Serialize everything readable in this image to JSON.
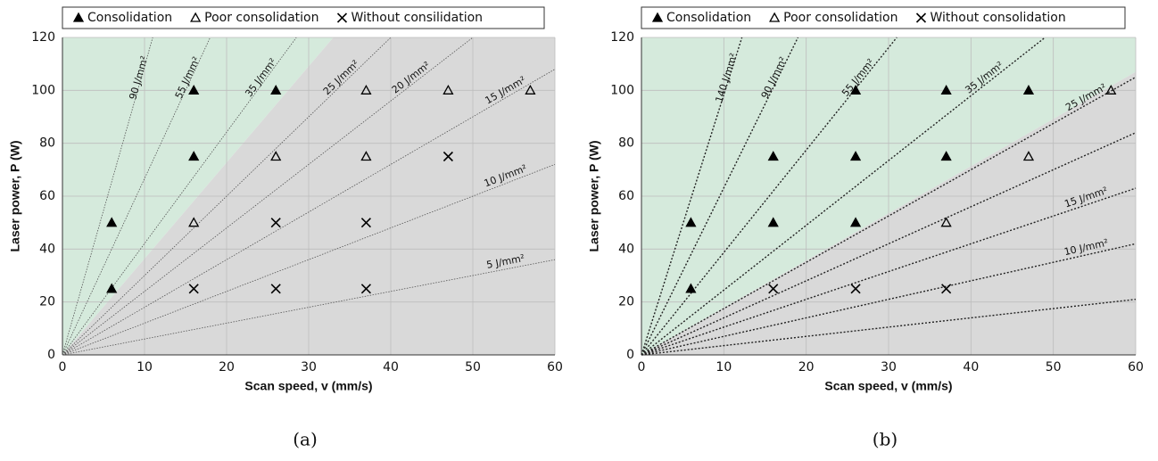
{
  "chart_data": [
    {
      "type": "scatter",
      "caption": "(a)",
      "x_label": "Scan speed, v (mm/s)",
      "y_label": "Laser power, P (W)",
      "xlim": [
        0,
        60
      ],
      "ylim": [
        0,
        120
      ],
      "xticks": [
        0,
        10,
        20,
        30,
        40,
        50,
        60
      ],
      "yticks": [
        0,
        20,
        40,
        60,
        80,
        100,
        120
      ],
      "grid": true,
      "regions": [
        {
          "color": "#d5eadc",
          "points": [
            [
              0,
              0
            ],
            [
              0,
              120
            ],
            [
              33,
              120
            ]
          ]
        },
        {
          "color": "#d9d9d9",
          "points": [
            [
              0,
              0
            ],
            [
              33,
              120
            ],
            [
              60,
              120
            ],
            [
              60,
              0
            ]
          ]
        }
      ],
      "lines": [
        {
          "label": "90 J/mm²",
          "end": [
            11,
            120
          ]
        },
        {
          "label": "55 J/mm²",
          "end": [
            18,
            120
          ]
        },
        {
          "label": "35 J/mm²",
          "end": [
            28.5,
            120
          ]
        },
        {
          "label": "25 J/mm²",
          "end": [
            40,
            120
          ]
        },
        {
          "label": "20 J/mm²",
          "end": [
            50,
            120
          ]
        },
        {
          "label": "15 J/mm²",
          "end": [
            60,
            108
          ]
        },
        {
          "label": "10 J/mm²",
          "end": [
            60,
            72
          ]
        },
        {
          "label": "5 J/mm²",
          "end": [
            60,
            36
          ]
        }
      ],
      "series": [
        {
          "name": "Consolidation",
          "marker": "triangle-filled",
          "color": "#000000",
          "x": [
            6,
            6,
            16,
            16,
            26
          ],
          "values": [
            50,
            25,
            100,
            75,
            100
          ]
        },
        {
          "name": "Poor consolidation",
          "marker": "triangle-open",
          "color": "#000000",
          "x": [
            16,
            26,
            37,
            37,
            47,
            57
          ],
          "values": [
            50,
            75,
            100,
            75,
            100,
            100
          ]
        },
        {
          "name": "Without consilidation",
          "marker": "cross",
          "color": "#000000",
          "x": [
            16,
            26,
            26,
            37,
            37,
            47
          ],
          "values": [
            25,
            50,
            25,
            50,
            25,
            75
          ]
        }
      ]
    },
    {
      "type": "scatter",
      "caption": "(b)",
      "x_label": "Scan speed, v (mm/s)",
      "y_label": "Laser power, P (W)",
      "xlim": [
        0,
        60
      ],
      "ylim": [
        0,
        120
      ],
      "xticks": [
        0,
        10,
        20,
        30,
        40,
        50,
        60
      ],
      "yticks": [
        0,
        20,
        40,
        60,
        80,
        100,
        120
      ],
      "grid": true,
      "regions": [
        {
          "color": "#d5eadc",
          "points": [
            [
              0,
              0
            ],
            [
              0,
              120
            ],
            [
              60,
              120
            ],
            [
              60,
              107
            ]
          ]
        },
        {
          "color": "#d9d9d9",
          "points": [
            [
              0,
              0
            ],
            [
              60,
              107
            ],
            [
              60,
              0
            ]
          ]
        }
      ],
      "lines": [
        {
          "label": "140 J/mm²",
          "end": [
            12.2,
            120
          ]
        },
        {
          "label": "90 J/mm²",
          "end": [
            19,
            120
          ]
        },
        {
          "label": "55 J/mm²",
          "end": [
            31,
            120
          ]
        },
        {
          "label": "35 J/mm²",
          "end": [
            49,
            120
          ]
        },
        {
          "label": "25 J/mm²",
          "end": [
            60,
            105
          ]
        },
        {
          "label": null,
          "end": [
            60,
            84
          ]
        },
        {
          "label": "15 J/mm²",
          "end": [
            60,
            63
          ]
        },
        {
          "label": "10 J/mm²",
          "end": [
            60,
            42
          ]
        },
        {
          "label": null,
          "end": [
            60,
            21
          ]
        }
      ],
      "series": [
        {
          "name": "Consolidation",
          "marker": "triangle-filled",
          "color": "#000000",
          "x": [
            6,
            6,
            16,
            16,
            26,
            26,
            26,
            37,
            37,
            47
          ],
          "values": [
            50,
            25,
            75,
            50,
            100,
            75,
            50,
            100,
            75,
            100
          ]
        },
        {
          "name": "Poor consolidation",
          "marker": "triangle-open",
          "color": "#000000",
          "x": [
            37,
            47,
            57
          ],
          "values": [
            50,
            75,
            100
          ]
        },
        {
          "name": "Without consolidation",
          "marker": "cross",
          "color": "#000000",
          "x": [
            16,
            26,
            37
          ],
          "values": [
            25,
            25,
            25
          ]
        }
      ]
    }
  ]
}
